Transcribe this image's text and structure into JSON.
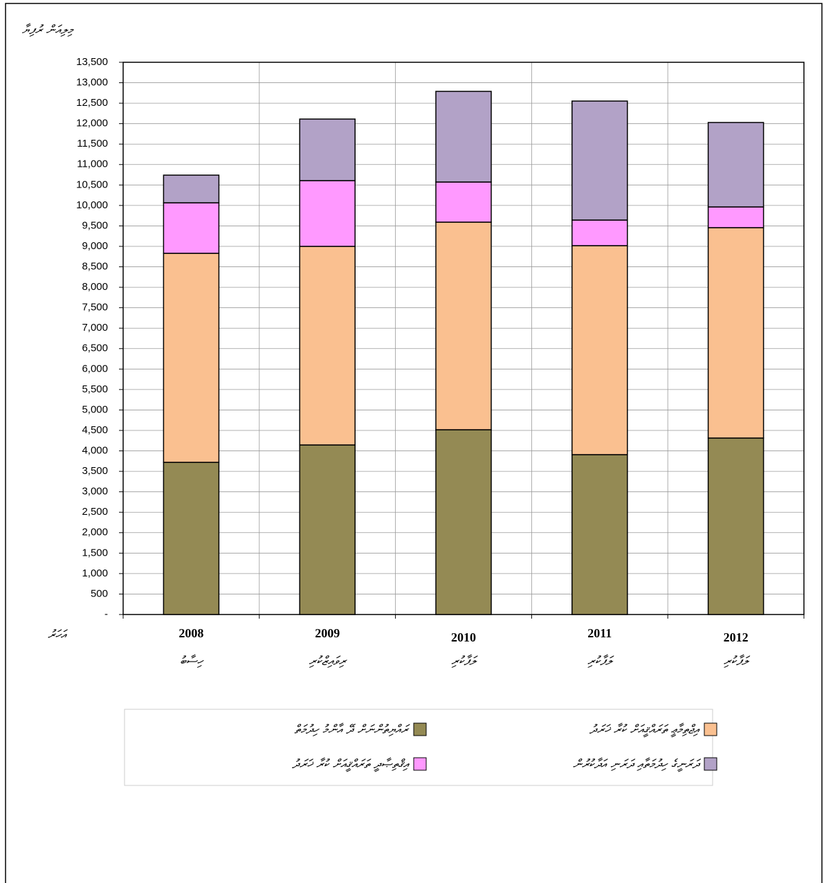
{
  "chart_data": {
    "type": "stacked_bar",
    "title": "މިލިއަން ރުފިޔާ",
    "x_label": "އަހަރު",
    "categories": [
      "2008",
      "2009",
      "2010",
      "2011",
      "2012"
    ],
    "category_notes": [
      "ހިސާބު",
      "ރިވައިޒްކުރި",
      "ލަފާކުރި",
      "ލަފާކުރި",
      "ލަފާކުރި"
    ],
    "series": [
      {
        "name": "ރައްޔިތުންނަށް ދޭ އާންމު ހިދުމަތް",
        "color": "#948a54",
        "values": [
          3720,
          4145,
          4517,
          3908,
          4314
        ]
      },
      {
        "name": "އިޖްތިމާޢީ ތަރައްޤީއަށް ކުރާ ޚަރަދު",
        "color": "#fac090",
        "values": [
          5110,
          4855,
          5075,
          5109,
          5143
        ]
      },
      {
        "name": "އިޤްތިޞާދީ ތަރައްޤީއަށް ކުރާ ޚަރަދު",
        "color": "#ff99ff",
        "values": [
          1235,
          1607,
          981,
          626,
          507
        ]
      },
      {
        "name": "ދަރަނީގެ ހިދުމަތާއި ދަރަނި އަދާކުރުން",
        "color": "#b2a2c7",
        "values": [
          676,
          1505,
          2216,
          2909,
          2064
        ]
      }
    ],
    "ylim": [
      0,
      13500
    ],
    "yticks": [
      {
        "value": 0,
        "label": "-"
      },
      500,
      {
        "value": 1000,
        "label": "1,000"
      },
      {
        "value": 1500,
        "label": "1,500"
      },
      {
        "value": 2000,
        "label": "2,000"
      },
      {
        "value": 2500,
        "label": "2,500"
      },
      {
        "value": 3000,
        "label": "3,000"
      },
      {
        "value": 3500,
        "label": "3,500"
      },
      {
        "value": 4000,
        "label": "4,000"
      },
      {
        "value": 4500,
        "label": "4,500"
      },
      {
        "value": 5000,
        "label": "5,000"
      },
      {
        "value": 5500,
        "label": "5,500"
      },
      {
        "value": 6000,
        "label": "6,000"
      },
      {
        "value": 6500,
        "label": "6,500"
      },
      {
        "value": 7000,
        "label": "7,000"
      },
      {
        "value": 7500,
        "label": "7,500"
      },
      {
        "value": 8000,
        "label": "8,000"
      },
      {
        "value": 8500,
        "label": "8,500"
      },
      {
        "value": 9000,
        "label": "9,000"
      },
      {
        "value": 9500,
        "label": "9,500"
      },
      {
        "value": 10000,
        "label": "10,000"
      },
      {
        "value": 10500,
        "label": "10,500"
      },
      {
        "value": 11000,
        "label": "11,000"
      },
      {
        "value": 11500,
        "label": "11,500"
      },
      {
        "value": 12000,
        "label": "12,000"
      },
      {
        "value": 12500,
        "label": "12,500"
      },
      {
        "value": 13000,
        "label": "13,000"
      },
      {
        "value": 13500,
        "label": "13,500"
      }
    ],
    "grid": true
  }
}
